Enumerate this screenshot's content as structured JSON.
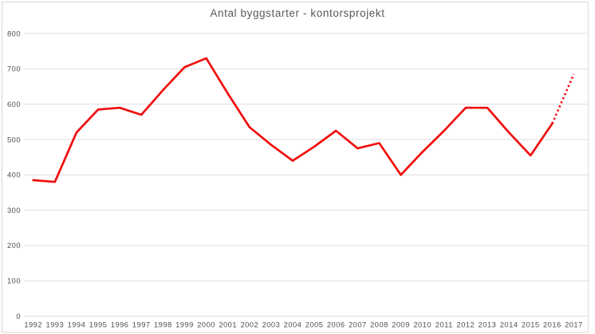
{
  "chart_data": {
    "type": "line",
    "title": "Antal byggstarter - kontorsprojekt",
    "x": [
      1992,
      1993,
      1994,
      1995,
      1996,
      1997,
      1998,
      1999,
      2000,
      2001,
      2002,
      2003,
      2004,
      2005,
      2006,
      2007,
      2008,
      2009,
      2010,
      2011,
      2012,
      2013,
      2014,
      2015,
      2016,
      2017
    ],
    "series": [
      {
        "name": "Antal byggstarter",
        "values": [
          385,
          380,
          520,
          585,
          590,
          570,
          640,
          705,
          730,
          630,
          535,
          485,
          440,
          480,
          525,
          475,
          490,
          400,
          465,
          525,
          590,
          590,
          520,
          455,
          545,
          685
        ]
      }
    ],
    "forecast": {
      "start_year": 2016,
      "end_year": 2017,
      "style": "dotted"
    },
    "xlabel": "",
    "ylabel": "",
    "ylim": [
      0,
      800
    ],
    "ytick_step": 100,
    "ytick_labels": [
      "0",
      "100",
      "200",
      "300",
      "400",
      "500",
      "600",
      "700",
      "800"
    ],
    "grid": true,
    "legend_position": "none",
    "colors": {
      "line": "#f10e0e",
      "grid": "#dcdcdc",
      "frame": "#d9d9d9",
      "tick_label": "#4d4d4d",
      "title": "#595959",
      "background": "#ffffff"
    }
  }
}
